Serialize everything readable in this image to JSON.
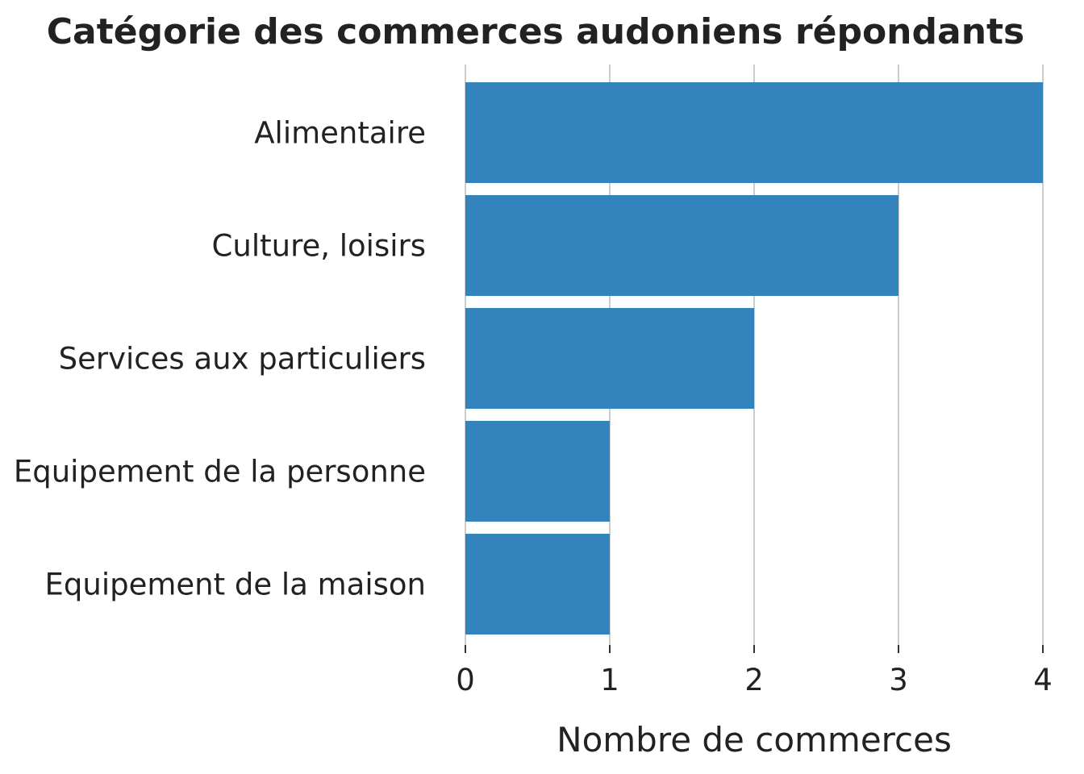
{
  "chart_data": {
    "type": "bar",
    "orientation": "horizontal",
    "title": "Catégorie des commerces audoniens répondants",
    "xlabel": "Nombre de commerces",
    "ylabel": "",
    "categories": [
      "Alimentaire",
      "Culture, loisirs",
      "Services aux particuliers",
      "Equipement de la personne",
      "Equipement de la maison"
    ],
    "values": [
      4,
      3,
      2,
      1,
      1
    ],
    "xlim": [
      0,
      4
    ],
    "xticks": [
      "0",
      "1",
      "2",
      "3",
      "4"
    ],
    "grid": "vertical",
    "legend": "none",
    "bar_color": "#3383bd",
    "grid_color": "#cccccc",
    "text_color": "#222222"
  }
}
